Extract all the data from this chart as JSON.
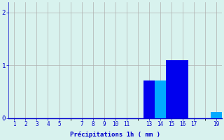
{
  "background_color": "#d8f2ee",
  "bar_color_dark": "#0000ee",
  "bar_color_light": "#00aaff",
  "grid_color": "#b0b0b0",
  "text_color": "#0000cc",
  "xlabel": "Précipitations 1h ( mm )",
  "ylim": [
    0,
    2.2
  ],
  "yticks": [
    0,
    1,
    2
  ],
  "xlim": [
    0.5,
    19.5
  ],
  "bar_data": [
    {
      "hour": 13,
      "value": 0.72,
      "color": "#0000ee"
    },
    {
      "hour": 14,
      "value": 0.72,
      "color": "#00aaff"
    },
    {
      "hour": 15,
      "value": 1.1,
      "color": "#0000ee"
    },
    {
      "hour": 16,
      "value": 1.1,
      "color": "#0000ee"
    },
    {
      "hour": 19,
      "value": 0.12,
      "color": "#00aaff"
    }
  ],
  "xtick_positions": [
    1,
    2,
    3,
    4,
    5,
    7,
    8,
    9,
    10,
    11,
    13,
    14,
    15,
    16,
    17,
    19
  ],
  "xtick_labels": [
    "1",
    "2",
    "3",
    "4",
    "5",
    "7",
    "8",
    "9",
    "10",
    "11",
    "13",
    "14",
    "15",
    "16",
    "17",
    "19"
  ],
  "xlabel_fontsize": 6.5,
  "tick_fontsize": 5.5,
  "ytick_fontsize": 6.5
}
